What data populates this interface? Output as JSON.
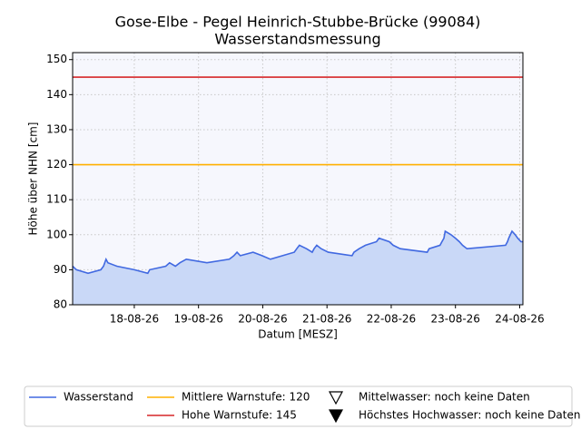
{
  "chart_data": {
    "type": "line",
    "title": "Gose-Elbe - Pegel Heinrich-Stubbe-Brücke (99084)",
    "subtitle": "Wasserstandsmessung",
    "x_label": "Datum [MESZ]",
    "y_label": "Höhe über NHN [cm]",
    "x": [
      17.04,
      17.1,
      17.28,
      17.48,
      17.52,
      17.56,
      17.59,
      17.73,
      18.0,
      18.21,
      18.24,
      18.49,
      18.55,
      18.64,
      18.71,
      18.81,
      19.13,
      19.48,
      19.55,
      19.6,
      19.65,
      19.85,
      19.99,
      20.12,
      20.49,
      20.53,
      20.57,
      20.68,
      20.77,
      20.8,
      20.84,
      20.91,
      21.02,
      21.39,
      21.42,
      21.5,
      21.6,
      21.77,
      21.81,
      21.97,
      22.03,
      22.14,
      22.56,
      22.59,
      22.76,
      22.79,
      22.82,
      22.84,
      22.93,
      23.0,
      23.06,
      23.11,
      23.18,
      23.78,
      23.81,
      23.83,
      23.88,
      23.93,
      23.97,
      24.02,
      24.05
    ],
    "series": [
      {
        "name": "Wasserstand",
        "color": "#4169e1",
        "fill": "#c9d8f7",
        "values": [
          91,
          90,
          89,
          90,
          91,
          93,
          92,
          91,
          90,
          89,
          90,
          91,
          92,
          91,
          92,
          93,
          92,
          93,
          94,
          95,
          94,
          95,
          94,
          93,
          95,
          96,
          97,
          96,
          95,
          96,
          97,
          96,
          95,
          94,
          95,
          96,
          97,
          98,
          99,
          98,
          97,
          96,
          95,
          96,
          97,
          98,
          99,
          101,
          100,
          99,
          98,
          97,
          96,
          97,
          98,
          99,
          101,
          100,
          99,
          98,
          98
        ]
      }
    ],
    "thresholds": [
      {
        "name": "Mittlere Warnstufe: 120",
        "value": 120,
        "color": "#ffb000"
      },
      {
        "name": "Hohe Warnstufe: 145",
        "value": 145,
        "color": "#d62728"
      }
    ],
    "markers": [
      {
        "name": "Mittelwasser: noch keine Daten",
        "symbol": "open-triangle"
      },
      {
        "name": "Höchstes Hochwasser: noch keine Daten",
        "symbol": "filled-triangle"
      }
    ],
    "xlim": [
      17.04,
      24.05
    ],
    "xticks": [
      {
        "value": 18,
        "label": "18-08-26"
      },
      {
        "value": 19,
        "label": "19-08-26"
      },
      {
        "value": 20,
        "label": "20-08-26"
      },
      {
        "value": 21,
        "label": "21-08-26"
      },
      {
        "value": 22,
        "label": "22-08-26"
      },
      {
        "value": 23,
        "label": "23-08-26"
      },
      {
        "value": 24,
        "label": "24-08-26"
      }
    ],
    "ylim": [
      80,
      152
    ],
    "yticks": [
      80,
      90,
      100,
      110,
      120,
      130,
      140,
      150
    ],
    "grid": true,
    "legend": "bottom"
  }
}
